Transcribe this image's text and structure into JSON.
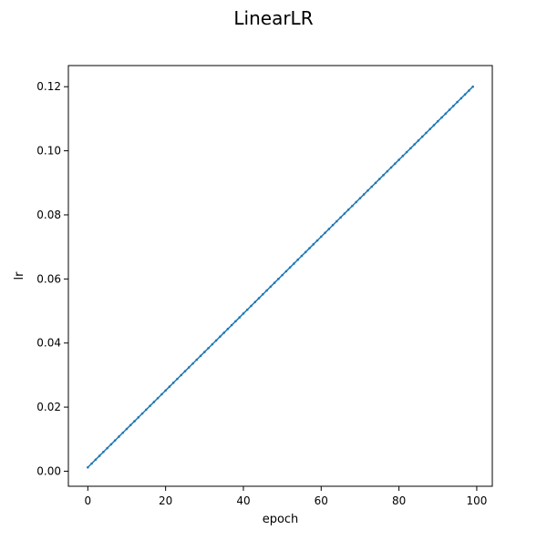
{
  "chart_data": {
    "type": "line",
    "title": "LinearLR",
    "xlabel": "epoch",
    "ylabel": "lr",
    "xlim": [
      -5,
      104
    ],
    "ylim": [
      -0.0047,
      0.1266
    ],
    "x_ticks": [
      0,
      20,
      40,
      60,
      80,
      100
    ],
    "y_ticks": [
      0.0,
      0.02,
      0.04,
      0.06,
      0.08,
      0.1,
      0.12
    ],
    "x_tick_labels": [
      "0",
      "20",
      "40",
      "60",
      "80",
      "100"
    ],
    "y_tick_labels": [
      "0.00",
      "0.02",
      "0.04",
      "0.06",
      "0.08",
      "0.10",
      "0.12"
    ],
    "grid": false,
    "series": [
      {
        "color": "#1f77b4",
        "marker": "dot",
        "x_start": 0,
        "x_end": 99,
        "x_step": 1,
        "y_start": 0.0012,
        "y_end": 0.12
      }
    ]
  }
}
